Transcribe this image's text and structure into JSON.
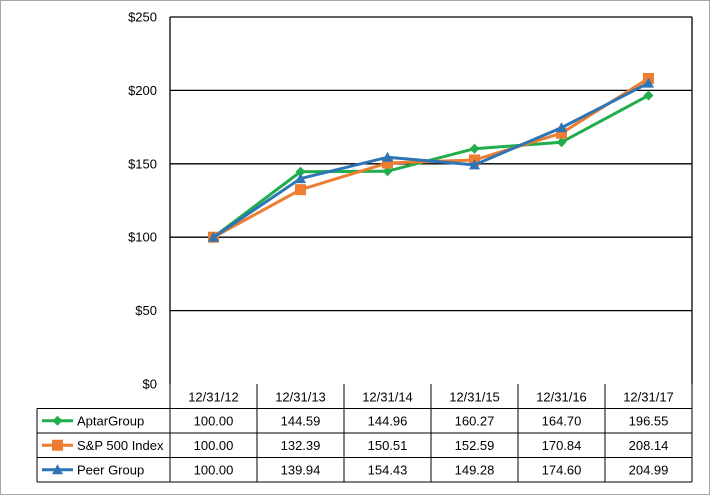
{
  "chart_data": {
    "type": "line",
    "categories": [
      "12/31/12",
      "12/31/13",
      "12/31/14",
      "12/31/15",
      "12/31/16",
      "12/31/17"
    ],
    "y_ticks": [
      "$0",
      "$50",
      "$100",
      "$150",
      "$200",
      "$250"
    ],
    "ylim": [
      0,
      250
    ],
    "grid": true,
    "legend_placement": "data-table",
    "series": [
      {
        "name": "AptarGroup",
        "color": "#1fae4b",
        "marker": "diamond",
        "values": [
          100.0,
          144.59,
          144.96,
          160.27,
          164.7,
          196.55
        ],
        "labels": [
          "100.00",
          "144.59",
          "144.96",
          "160.27",
          "164.70",
          "196.55"
        ]
      },
      {
        "name": "S&P 500 Index",
        "color": "#ed7d31",
        "marker": "square",
        "values": [
          100.0,
          132.39,
          150.51,
          152.59,
          170.84,
          208.14
        ],
        "labels": [
          "100.00",
          "132.39",
          "150.51",
          "152.59",
          "170.84",
          "208.14"
        ]
      },
      {
        "name": "Peer Group",
        "color": "#2e75b6",
        "marker": "triangle",
        "values": [
          100.0,
          139.94,
          154.43,
          149.28,
          174.6,
          204.99
        ],
        "labels": [
          "100.00",
          "139.94",
          "154.43",
          "149.28",
          "174.60",
          "204.99"
        ]
      }
    ]
  }
}
